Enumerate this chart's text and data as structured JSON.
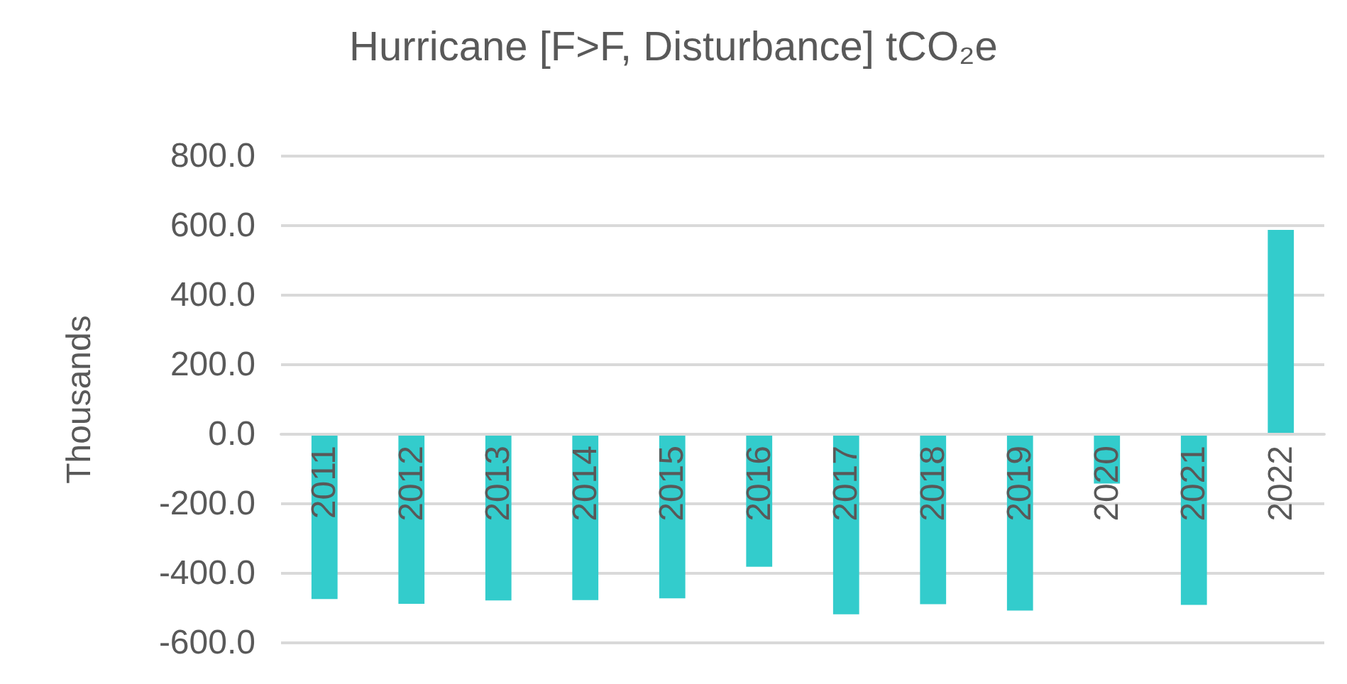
{
  "chart_data": {
    "type": "bar",
    "title": "Hurricane [F>F, Disturbance] tCO₂e",
    "ylabel": "Thousands",
    "categories": [
      "2011",
      "2012",
      "2013",
      "2014",
      "2015",
      "2016",
      "2017",
      "2018",
      "2019",
      "2020",
      "2021",
      "2022"
    ],
    "values": [
      -474,
      -488,
      -478,
      -477,
      -472,
      -381,
      -518,
      -489,
      -507,
      -142,
      -491,
      588
    ],
    "color": "#33cccc",
    "ylim": [
      -600,
      800
    ],
    "yticks": [
      {
        "value": -600,
        "label": "-600.0"
      },
      {
        "value": -400,
        "label": "-400.0"
      },
      {
        "value": -200,
        "label": "-200.0"
      },
      {
        "value": 0,
        "label": "0.0"
      },
      {
        "value": 200,
        "label": "200.0"
      },
      {
        "value": 400,
        "label": "400.0"
      },
      {
        "value": 600,
        "label": "600.0"
      },
      {
        "value": 800,
        "label": "800.0"
      }
    ],
    "grid": "y"
  }
}
